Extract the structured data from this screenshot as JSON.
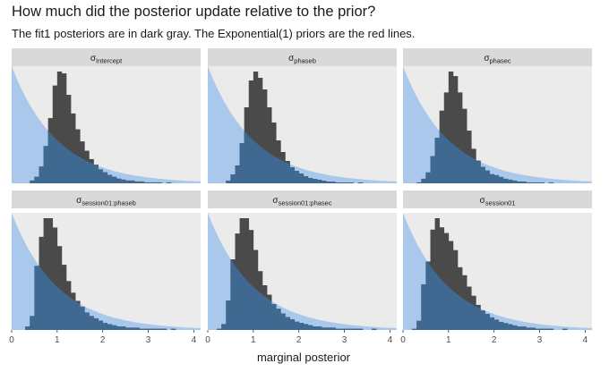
{
  "header": {
    "title": "How much did the posterior update relative to the prior?",
    "subtitle": "The fit1 posteriors are in dark gray. The Exponential(1) priors are the red lines."
  },
  "chart_data": {
    "type": "histogram",
    "x_title": "marginal posterior",
    "x_range": [
      0,
      4.15
    ],
    "x_ticks": [
      0,
      1,
      2,
      3,
      4
    ],
    "bin_width": 0.1,
    "bin_start": 0.0,
    "prior": {
      "distribution": "Exponential",
      "rate": 1,
      "fill": "#a9c8ec"
    },
    "colors": {
      "posterior": "#4a4a4a",
      "overlap": "#3f6991",
      "panel": "#ebebeb",
      "strip": "#d9d9d9"
    },
    "grid": false,
    "layout": {
      "rows": 2,
      "cols": 3
    },
    "panels": [
      {
        "sym": "σ",
        "sub": "Intercept",
        "counts": [
          0,
          0,
          0,
          0,
          3,
          7,
          18,
          40,
          70,
          105,
          120,
          118,
          95,
          75,
          58,
          45,
          35,
          26,
          20,
          15,
          12,
          9,
          7,
          5,
          4,
          3,
          3,
          2,
          2,
          1,
          1,
          1,
          1,
          0,
          1,
          0,
          0,
          0,
          0,
          0,
          0
        ]
      },
      {
        "sym": "σ",
        "sub": "phaseb",
        "counts": [
          0,
          0,
          0,
          0,
          3,
          10,
          20,
          45,
          85,
          115,
          125,
          118,
          105,
          85,
          68,
          48,
          35,
          25,
          18,
          14,
          11,
          8,
          6,
          5,
          4,
          3,
          2,
          2,
          1,
          1,
          1,
          1,
          0,
          1,
          0,
          0,
          0,
          0,
          0,
          0,
          0
        ]
      },
      {
        "sym": "σ",
        "sub": "phasec",
        "counts": [
          0,
          0,
          0,
          1,
          5,
          12,
          30,
          50,
          80,
          100,
          123,
          118,
          100,
          82,
          58,
          38,
          25,
          18,
          14,
          10,
          9,
          7,
          5,
          4,
          3,
          2,
          2,
          1,
          1,
          1,
          1,
          0,
          1,
          0,
          0,
          0,
          0,
          0,
          0,
          0,
          0
        ]
      },
      {
        "sym": "σ",
        "sub": "session01:phaseb",
        "counts": [
          0,
          0,
          0,
          3,
          12,
          55,
          80,
          96,
          96,
          88,
          72,
          56,
          42,
          32,
          25,
          20,
          15,
          12,
          10,
          8,
          6,
          5,
          4,
          3,
          3,
          2,
          2,
          2,
          1,
          1,
          1,
          1,
          1,
          1,
          0,
          1,
          0,
          0,
          0,
          0,
          0
        ]
      },
      {
        "sym": "σ",
        "sub": "session01:phasec",
        "counts": [
          0,
          0,
          1,
          5,
          25,
          60,
          82,
          95,
          95,
          85,
          68,
          50,
          38,
          30,
          22,
          18,
          14,
          11,
          9,
          7,
          6,
          5,
          4,
          3,
          3,
          2,
          2,
          2,
          1,
          1,
          1,
          1,
          1,
          1,
          0,
          0,
          1,
          0,
          0,
          0,
          0
        ]
      },
      {
        "sym": "σ",
        "sub": "session01",
        "counts": [
          0,
          0,
          1,
          8,
          40,
          60,
          88,
          98,
          90,
          85,
          78,
          70,
          55,
          48,
          38,
          30,
          22,
          17,
          14,
          11,
          9,
          7,
          6,
          5,
          4,
          3,
          3,
          2,
          2,
          1,
          1,
          1,
          1,
          0,
          0,
          1,
          0,
          0,
          0,
          0,
          0
        ]
      }
    ]
  }
}
